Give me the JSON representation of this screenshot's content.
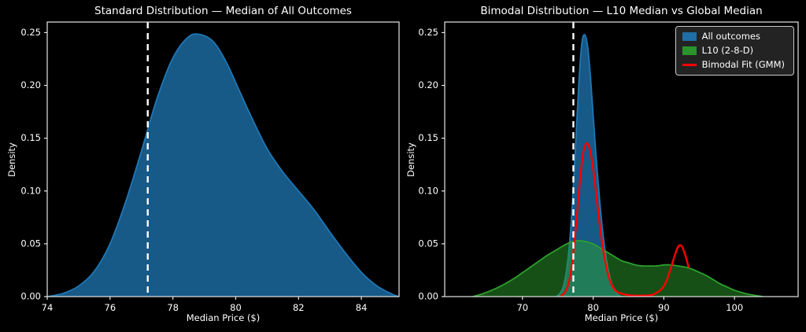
{
  "background": "#000000",
  "text_color": "#ffffff",
  "axis_color": "#e6e6e6",
  "chart_data": [
    {
      "type": "area",
      "title": "Standard Distribution — Median of All Outcomes",
      "xlabel": "Median Price ($)",
      "ylabel": "Density",
      "xlim": [
        74,
        85.2
      ],
      "ylim": [
        0,
        0.26
      ],
      "xticks": [
        74,
        76,
        78,
        80,
        82,
        84
      ],
      "xtick_labels": [
        "74",
        "76",
        "78",
        "80",
        "82",
        "84"
      ],
      "yticks": [
        0,
        0.05,
        0.1,
        0.15,
        0.2,
        0.25
      ],
      "ytick_labels": [
        "0.00",
        "0.05",
        "0.10",
        "0.15",
        "0.20",
        "0.25"
      ],
      "grid": false,
      "vline": {
        "x": 77.2,
        "color": "#ffffff",
        "style": "dashed",
        "label": "global median"
      },
      "series": [
        {
          "name": "All outcomes",
          "kind": "area",
          "color": "#1f77b4",
          "fill_opacity": 0.75,
          "x": [
            74.0,
            74.5,
            75.0,
            75.5,
            76.0,
            76.5,
            77.0,
            77.5,
            78.0,
            78.5,
            78.9,
            79.3,
            79.7,
            80.1,
            80.5,
            81.0,
            81.5,
            82.0,
            82.5,
            83.0,
            83.5,
            84.0,
            84.5,
            85.0,
            85.2
          ],
          "y": [
            0.0,
            0.003,
            0.01,
            0.024,
            0.05,
            0.09,
            0.138,
            0.188,
            0.226,
            0.246,
            0.248,
            0.241,
            0.222,
            0.196,
            0.17,
            0.14,
            0.118,
            0.1,
            0.082,
            0.061,
            0.041,
            0.023,
            0.01,
            0.002,
            0.0
          ]
        }
      ],
      "legend": null
    },
    {
      "type": "area",
      "title": "Bimodal Distribution — L10 Median vs Global Median",
      "xlabel": "Median Price ($)",
      "ylabel": "Density",
      "xlim": [
        59,
        109
      ],
      "ylim": [
        0,
        0.26
      ],
      "xticks": [
        70,
        80,
        90,
        100
      ],
      "xtick_labels": [
        "70",
        "80",
        "90",
        "100"
      ],
      "yticks": [
        0,
        0.05,
        0.1,
        0.15,
        0.2,
        0.25
      ],
      "ytick_labels": [
        "0.00",
        "0.05",
        "0.10",
        "0.15",
        "0.20",
        "0.25"
      ],
      "grid": false,
      "vline": {
        "x": 77.2,
        "color": "#ffffff",
        "style": "dashed",
        "label": "global median"
      },
      "series": [
        {
          "name": "All outcomes",
          "kind": "area",
          "color": "#1f77b4",
          "fill_opacity": 0.75,
          "x": [
            74.8,
            75.3,
            75.8,
            76.3,
            76.8,
            77.2,
            77.6,
            78.0,
            78.4,
            78.8,
            79.2,
            79.6,
            80.0,
            80.5,
            81.0,
            81.5,
            82.0,
            82.5,
            83.0,
            83.5,
            84.0
          ],
          "y": [
            0.0,
            0.003,
            0.01,
            0.028,
            0.062,
            0.105,
            0.155,
            0.205,
            0.24,
            0.248,
            0.238,
            0.21,
            0.172,
            0.125,
            0.085,
            0.053,
            0.03,
            0.015,
            0.006,
            0.002,
            0.0
          ]
        },
        {
          "name": "L10 (2-8-D)",
          "kind": "area",
          "color": "#2ca02c",
          "fill_opacity": 0.5,
          "x": [
            63,
            64.5,
            66,
            67.5,
            69,
            70.5,
            72,
            73.5,
            75,
            76,
            77,
            78,
            79,
            80,
            81,
            82,
            83,
            84,
            85,
            86,
            87,
            88,
            89,
            90,
            91,
            92,
            93,
            94,
            95,
            96,
            97,
            98,
            99,
            100,
            101.5,
            103,
            104
          ],
          "y": [
            0.0,
            0.003,
            0.007,
            0.012,
            0.018,
            0.025,
            0.032,
            0.039,
            0.045,
            0.049,
            0.052,
            0.053,
            0.052,
            0.05,
            0.046,
            0.042,
            0.038,
            0.034,
            0.032,
            0.03,
            0.029,
            0.029,
            0.029,
            0.03,
            0.03,
            0.029,
            0.028,
            0.026,
            0.023,
            0.02,
            0.016,
            0.012,
            0.009,
            0.006,
            0.003,
            0.001,
            0.0
          ]
        },
        {
          "name": "Bimodal Fit (GMM)",
          "kind": "line",
          "color": "#ff0000",
          "fill_opacity": 0,
          "x": [
            75.5,
            76.0,
            76.5,
            77.0,
            77.5,
            78.0,
            78.5,
            79.0,
            79.5,
            80.0,
            80.5,
            81.0,
            81.5,
            82.0,
            82.5,
            83.0,
            83.5,
            84.5,
            85.5,
            86.5,
            87.5,
            88.5,
            89.5,
            90.0,
            90.5,
            91.0,
            91.5,
            92.0,
            92.5,
            93.0,
            93.5
          ],
          "y": [
            0.001,
            0.004,
            0.012,
            0.03,
            0.062,
            0.1,
            0.132,
            0.145,
            0.14,
            0.121,
            0.093,
            0.064,
            0.041,
            0.024,
            0.013,
            0.007,
            0.004,
            0.002,
            0.001,
            0.001,
            0.001,
            0.002,
            0.006,
            0.01,
            0.017,
            0.027,
            0.038,
            0.047,
            0.048,
            0.04,
            0.028
          ]
        }
      ],
      "legend": {
        "position": "top-right",
        "items": [
          {
            "label": "All outcomes",
            "swatch": "fill",
            "color": "#1f77b4"
          },
          {
            "label": "L10 (2-8-D)",
            "swatch": "fill",
            "color": "#2ca02c"
          },
          {
            "label": "Bimodal Fit (GMM)",
            "swatch": "line",
            "color": "#ff0000"
          }
        ]
      }
    }
  ]
}
